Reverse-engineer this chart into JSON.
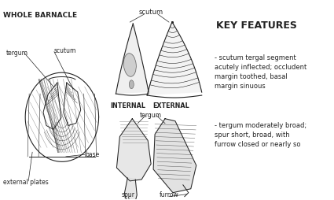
{
  "bg_color": "#ffffff",
  "title_whole": "WHOLE BARNACLE",
  "title_key": "KEY FEATURES",
  "label_tergum": "tergum",
  "label_scutum_top": "scutum",
  "label_scutum_side": "scutum",
  "label_base": "base",
  "label_ext_plates": "external plates",
  "label_internal": "INTERNAL",
  "label_external": "EXTERNAL",
  "label_tergum2": "tergum",
  "label_spur": "spur",
  "label_furrow": "furrow",
  "bullet1": "- scutum tergal segment\nacutely inflected; occludent\nmargin toothed, basal\nmargin sinuous",
  "bullet2": "- tergum moderately broad;\nspur short, broad, with\nfurrow closed or nearly so",
  "fig_width": 4.25,
  "fig_height": 2.55,
  "dpi": 100
}
